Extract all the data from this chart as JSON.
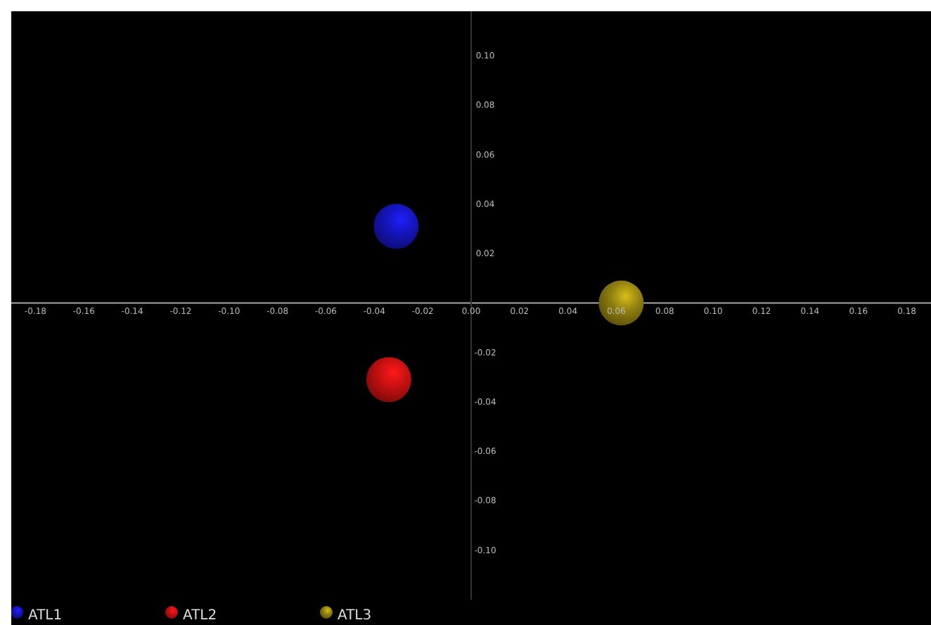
{
  "chart_data": {
    "type": "scatter",
    "xlim": [
      -0.19,
      0.19
    ],
    "ylim": [
      -0.12,
      0.118
    ],
    "xticks": [
      -0.18,
      -0.16,
      -0.14,
      -0.12,
      {
        "value": -0.1,
        "label": "-0.10"
      },
      -0.08,
      -0.06,
      -0.04,
      -0.02,
      {
        "value": 0,
        "label": "0.00"
      },
      0.02,
      0.04,
      0.06,
      0.08,
      {
        "value": 0.1,
        "label": "0.10"
      },
      0.12,
      0.14,
      0.16,
      0.18
    ],
    "yticks": [
      {
        "value": -0.1,
        "label": "-0.10"
      },
      -0.08,
      -0.06,
      -0.04,
      -0.02,
      0.02,
      0.04,
      0.06,
      0.08,
      {
        "value": 0.1,
        "label": "0.10"
      }
    ],
    "marker": "circle",
    "legend": "bottom left",
    "grid": false,
    "series": [
      {
        "name": "ATL1",
        "color": "#1414b4",
        "x": [
          -0.031
        ],
        "values": [
          0.031
        ]
      },
      {
        "name": "ATL2",
        "color": "#c01010",
        "x": [
          -0.034
        ],
        "values": [
          -0.031
        ]
      },
      {
        "name": "ATL3",
        "color": "#8c7c10",
        "x": [
          0.062
        ],
        "values": [
          0
        ]
      }
    ]
  }
}
